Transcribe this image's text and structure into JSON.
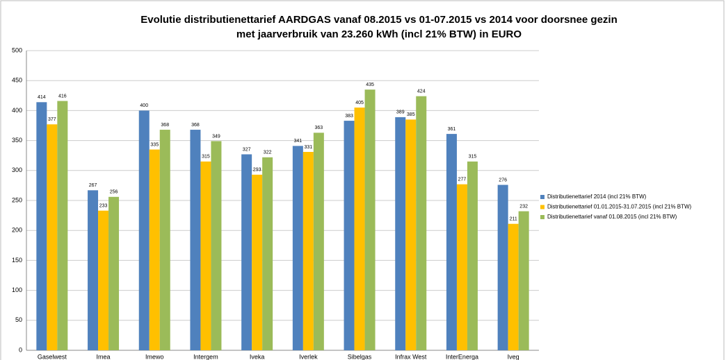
{
  "chart_data": {
    "type": "bar",
    "title": "Evolutie distributienettarief AARDGAS vanaf 08.2015 vs 01-07.2015 vs 2014 voor doorsnee gezin",
    "subtitle": "met jaarverbruik van 23.260 kWh (incl 21% BTW) in EURO",
    "categories": [
      "Gaselwest",
      "Imea",
      "Imewo",
      "Intergem",
      "Iveka",
      "Iverlek",
      "Sibelgas",
      "Infrax West",
      "InterEnerga",
      "Iveg"
    ],
    "series": [
      {
        "name": "Distributienettarief 2014 (incl 21% BTW)",
        "color": "#4f81bd",
        "values": [
          414,
          267,
          400,
          368,
          327,
          341,
          383,
          389,
          361,
          276
        ]
      },
      {
        "name": "Distributienettarief 01.01.2015-31.07.2015 (incl 21% BTW)",
        "color": "#ffc000",
        "values": [
          377,
          233,
          335,
          315,
          293,
          331,
          405,
          385,
          277,
          211
        ]
      },
      {
        "name": "Distributienettarief vanaf 01.08.2015 (incl 21% BTW)",
        "color": "#9bbb59",
        "values": [
          416,
          256,
          368,
          349,
          322,
          363,
          435,
          424,
          315,
          232
        ]
      }
    ],
    "ylim": [
      0,
      500
    ],
    "yticks": [
      0,
      50,
      100,
      150,
      200,
      250,
      300,
      350,
      400,
      450,
      500
    ],
    "grid": true,
    "legend": "right"
  }
}
